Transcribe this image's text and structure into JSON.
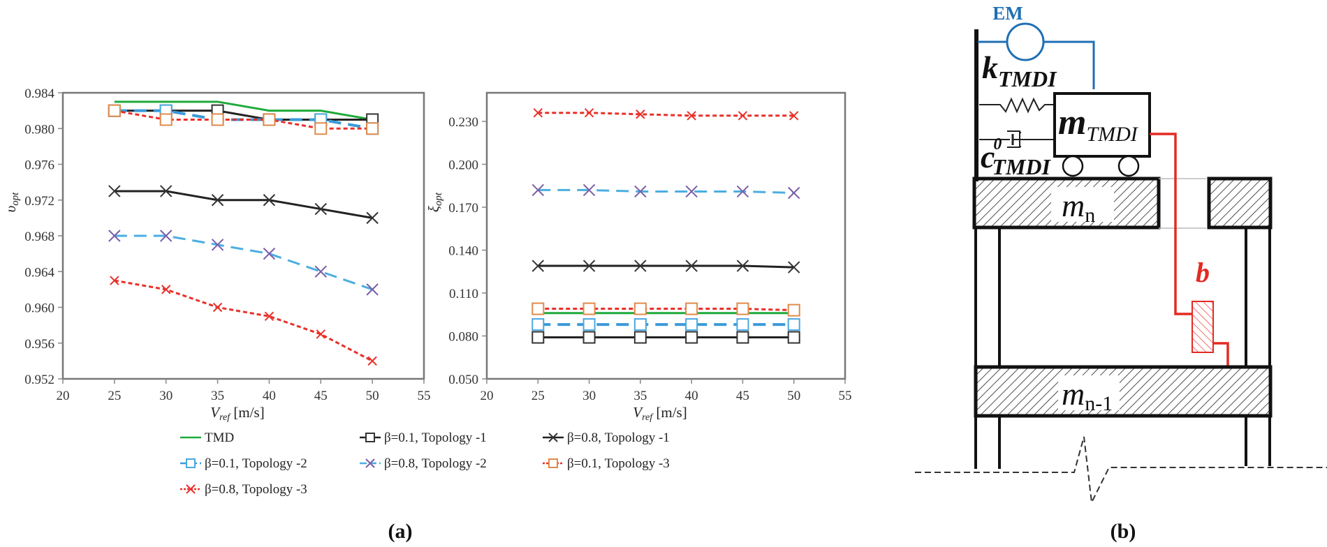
{
  "figure": {
    "caption_a": "(a)",
    "caption_b": "(b)"
  },
  "chart_data": [
    {
      "type": "line",
      "title": "",
      "xlabel": "V_ref [m/s]",
      "ylabel": "υ_opt",
      "xlim": [
        20,
        55
      ],
      "ylim": [
        0.952,
        0.984
      ],
      "xticks": [
        "20",
        "25",
        "30",
        "35",
        "40",
        "45",
        "50",
        "55"
      ],
      "yticks": [
        "0.952",
        "0.956",
        "0.960",
        "0.964",
        "0.968",
        "0.972",
        "0.976",
        "0.980",
        "0.984"
      ],
      "grid": false,
      "legend_position": "bottom",
      "x": [
        25,
        30,
        35,
        40,
        45,
        50
      ],
      "series": [
        {
          "name": "TMD",
          "values": [
            0.983,
            0.983,
            0.983,
            0.982,
            0.982,
            0.981
          ]
        },
        {
          "name": "β=0.1, Topology -1",
          "values": [
            0.982,
            0.982,
            0.982,
            0.981,
            0.981,
            0.981
          ]
        },
        {
          "name": "β=0.8, Topology -1",
          "values": [
            0.973,
            0.973,
            0.972,
            0.972,
            0.971,
            0.97
          ]
        },
        {
          "name": "β=0.1, Topology -2",
          "values": [
            0.982,
            0.982,
            0.981,
            0.981,
            0.981,
            0.98
          ]
        },
        {
          "name": "β=0.8, Topology -2",
          "values": [
            0.968,
            0.968,
            0.967,
            0.966,
            0.964,
            0.962
          ]
        },
        {
          "name": "β=0.1, Topology -3",
          "values": [
            0.982,
            0.981,
            0.981,
            0.981,
            0.98,
            0.98
          ]
        },
        {
          "name": "β=0.8, Topology -3",
          "values": [
            0.963,
            0.962,
            0.96,
            0.959,
            0.957,
            0.954
          ]
        }
      ]
    },
    {
      "type": "line",
      "title": "",
      "xlabel": "V_ref [m/s]",
      "ylabel": "ξ_opt",
      "xlim": [
        20,
        55
      ],
      "ylim": [
        0.05,
        0.25
      ],
      "xticks": [
        "20",
        "25",
        "30",
        "35",
        "40",
        "45",
        "50",
        "55"
      ],
      "yticks": [
        "0.050",
        "0.080",
        "0.110",
        "0.140",
        "0.170",
        "0.200",
        "0.230"
      ],
      "grid": false,
      "legend_position": "bottom",
      "x": [
        25,
        30,
        35,
        40,
        45,
        50
      ],
      "series": [
        {
          "name": "TMD",
          "values": [
            0.096,
            0.096,
            0.096,
            0.096,
            0.096,
            0.096
          ]
        },
        {
          "name": "β=0.1, Topology -1",
          "values": [
            0.079,
            0.079,
            0.079,
            0.079,
            0.079,
            0.079
          ]
        },
        {
          "name": "β=0.8, Topology -1",
          "values": [
            0.129,
            0.129,
            0.129,
            0.129,
            0.129,
            0.128
          ]
        },
        {
          "name": "β=0.1, Topology -2",
          "values": [
            0.088,
            0.088,
            0.088,
            0.088,
            0.088,
            0.088
          ]
        },
        {
          "name": "β=0.8, Topology -2",
          "values": [
            0.182,
            0.182,
            0.181,
            0.181,
            0.181,
            0.18
          ]
        },
        {
          "name": "β=0.1, Topology -3",
          "values": [
            0.099,
            0.099,
            0.099,
            0.099,
            0.099,
            0.098
          ]
        },
        {
          "name": "β=0.8, Topology -3",
          "values": [
            0.236,
            0.236,
            0.235,
            0.234,
            0.234,
            0.234
          ]
        }
      ]
    }
  ],
  "styles": {
    "TMD": {
      "color": "#1faa3a",
      "dash": "",
      "marker": "none"
    },
    "b01t1": {
      "color": "#222222",
      "dash": "",
      "marker": "square",
      "marker_color": "#333333"
    },
    "b08t1": {
      "color": "#222222",
      "dash": "",
      "marker": "x",
      "marker_color": "#333333"
    },
    "b01t2": {
      "color": "#3a9ad9",
      "dash": "18,10",
      "marker": "square",
      "marker_color": "#4aa8e0"
    },
    "b08t2": {
      "color": "#4aaee0",
      "dash": "18,10",
      "marker": "x",
      "marker_color": "#7a5ea8"
    },
    "b01t3": {
      "color": "#e8302a",
      "dash": "6,4",
      "marker": "square",
      "marker_color": "#e08a4a"
    },
    "b08t3": {
      "color": "#e8302a",
      "dash": "6,4",
      "marker": "x",
      "marker_color": "#e8302a"
    }
  },
  "legend": [
    {
      "key": "TMD",
      "label": "TMD"
    },
    {
      "key": "b01t1",
      "label": "β=0.1, Topology -1"
    },
    {
      "key": "b08t1",
      "label": "β=0.8, Topology -1"
    },
    {
      "key": "b01t2",
      "label": "β=0.1, Topology -2"
    },
    {
      "key": "b08t2",
      "label": "β=0.8, Topology -2"
    },
    {
      "key": "b01t3",
      "label": "β=0.1, Topology -3"
    },
    {
      "key": "b08t3",
      "label": "β=0.8, Topology -3"
    }
  ],
  "diagram": {
    "em_label": "EM",
    "k_label": "k",
    "k_sub": "TMDI",
    "m_label": "m",
    "m_sub": "TMDI",
    "c_label": "c",
    "c_sup": "0",
    "c_sub": "TMDI",
    "mn_label": "m",
    "mn_sub": "n",
    "mn1_label": "m",
    "mn1_sub": "n-1",
    "b_label": "b",
    "em_color": "#1f6fb4",
    "inerter_color": "#e32a22"
  }
}
